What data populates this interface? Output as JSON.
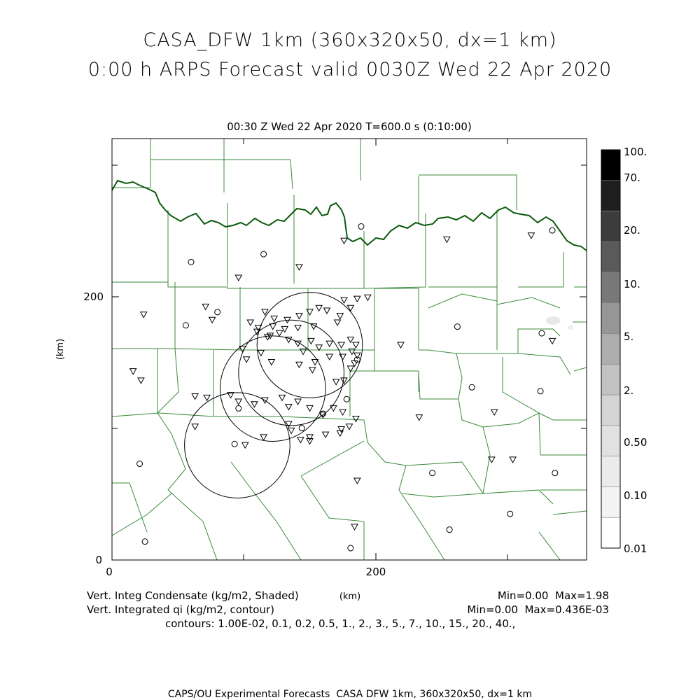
{
  "titles": {
    "line1": "CASA_DFW 1km (360x320x50, dx=1 km)",
    "line2": "0:00 h ARPS Forecast valid 0030Z Wed 22 Apr 2020",
    "subtitle": "00:30 Z Wed 22 Apr 2020    T=600.0 s (0:10:00)"
  },
  "axes": {
    "x_ticks": [
      "0",
      "200"
    ],
    "y_ticks": [
      "0",
      "200"
    ],
    "x_unit": "(km)",
    "y_unit": "(km)",
    "x_range_km": [
      0,
      360
    ],
    "y_range_km": [
      0,
      320
    ]
  },
  "colorbar": {
    "labels": [
      "100.",
      "70.",
      "20.",
      "10.",
      "5.",
      "2.",
      "0.50",
      "0.10",
      "0.01"
    ],
    "fills": [
      "#000000",
      "#1e1e1e",
      "#3c3c3c",
      "#5a5a5a",
      "#787878",
      "#969696",
      "#adadad",
      "#c2c2c2",
      "#d4d4d4",
      "#e1e1e1",
      "#ebebeb",
      "#f4f4f4",
      "#ffffff"
    ]
  },
  "footer": {
    "field1": "Vert. Integ Condensate (kg/m2, Shaded)",
    "field1_range": "Min=0.00  Max=1.98",
    "field2": "Vert. Integrated qi (kg/m2, contour)",
    "field2_range": "Min=0.00  Max=0.436E-03",
    "contours": "contours: 1.00E-02, 0.1, 0.2, 0.5, 1., 2., 3., 5., 7., 10., 15., 20., 40.,",
    "credit": "CAPS/OU Experimental Forecasts  CASA DFW 1km, 360x320x50, dx=1 km"
  },
  "colors": {
    "county_lines": "#3a8a3a",
    "state_line": "#0c5a0c",
    "radar_rings": "#000000"
  },
  "map_symbols": {
    "radar_sites_km": [
      [
        150,
        163
      ],
      [
        136,
        142
      ],
      [
        122,
        130
      ],
      [
        95,
        87
      ]
    ],
    "radar_range_km": 40,
    "triangle_markers_km": [
      [
        24,
        186
      ],
      [
        16,
        143
      ],
      [
        96,
        214
      ],
      [
        142,
        222
      ],
      [
        176,
        242
      ],
      [
        254,
        243
      ],
      [
        318,
        246
      ],
      [
        71,
        192
      ],
      [
        76,
        182
      ],
      [
        105,
        180
      ],
      [
        123,
        183
      ],
      [
        133,
        182
      ],
      [
        142,
        185
      ],
      [
        150,
        188
      ],
      [
        157,
        191
      ],
      [
        163,
        189
      ],
      [
        173,
        185
      ],
      [
        176,
        197
      ],
      [
        181,
        191
      ],
      [
        122,
        177
      ],
      [
        141,
        176
      ],
      [
        153,
        177
      ],
      [
        171,
        180
      ],
      [
        127,
        172
      ],
      [
        131,
        175
      ],
      [
        151,
        166
      ],
      [
        157,
        161
      ],
      [
        165,
        164
      ],
      [
        174,
        163
      ],
      [
        181,
        167
      ],
      [
        185,
        163
      ],
      [
        186,
        155
      ],
      [
        110,
        173
      ],
      [
        111,
        176
      ],
      [
        118,
        169
      ],
      [
        120,
        170
      ],
      [
        134,
        167
      ],
      [
        141,
        164
      ],
      [
        145,
        158
      ],
      [
        154,
        150
      ],
      [
        165,
        154
      ],
      [
        175,
        154
      ],
      [
        182,
        158
      ],
      [
        184,
        149
      ],
      [
        181,
        145
      ],
      [
        99,
        160
      ],
      [
        102,
        152
      ],
      [
        113,
        157
      ],
      [
        121,
        150
      ],
      [
        142,
        148
      ],
      [
        152,
        144
      ],
      [
        170,
        135
      ],
      [
        176,
        136
      ],
      [
        63,
        124
      ],
      [
        72,
        123
      ],
      [
        90,
        125
      ],
      [
        96,
        120
      ],
      [
        108,
        118
      ],
      [
        116,
        121
      ],
      [
        129,
        123
      ],
      [
        134,
        116
      ],
      [
        141,
        120
      ],
      [
        150,
        115
      ],
      [
        160,
        110
      ],
      [
        168,
        115
      ],
      [
        175,
        112
      ],
      [
        174,
        99
      ],
      [
        150,
        93
      ],
      [
        134,
        103
      ],
      [
        136,
        98
      ],
      [
        143,
        91
      ],
      [
        150,
        90
      ],
      [
        162,
        95
      ],
      [
        173,
        96
      ],
      [
        180,
        101
      ],
      [
        185,
        107
      ],
      [
        115,
        93
      ],
      [
        101,
        87
      ],
      [
        63,
        101
      ],
      [
        22,
        136
      ],
      [
        233,
        108
      ],
      [
        290,
        112
      ],
      [
        288,
        76
      ],
      [
        304,
        76
      ],
      [
        186,
        60
      ],
      [
        184,
        25
      ],
      [
        219,
        163
      ],
      [
        334,
        166
      ],
      [
        186,
        198
      ],
      [
        116,
        188
      ],
      [
        194,
        199
      ]
    ],
    "circle_markers_km": [
      [
        60,
        226
      ],
      [
        115,
        232
      ],
      [
        189,
        253
      ],
      [
        334,
        250
      ],
      [
        56,
        178
      ],
      [
        80,
        188
      ],
      [
        262,
        177
      ],
      [
        326,
        172
      ],
      [
        186,
        152
      ],
      [
        144,
        100
      ],
      [
        160,
        111
      ],
      [
        273,
        131
      ],
      [
        325,
        128
      ],
      [
        93,
        88
      ],
      [
        243,
        66
      ],
      [
        336,
        66
      ],
      [
        21,
        73
      ],
      [
        25,
        14
      ],
      [
        181,
        9
      ],
      [
        256,
        23
      ],
      [
        302,
        35
      ],
      [
        178,
        122
      ],
      [
        96,
        115
      ]
    ]
  }
}
